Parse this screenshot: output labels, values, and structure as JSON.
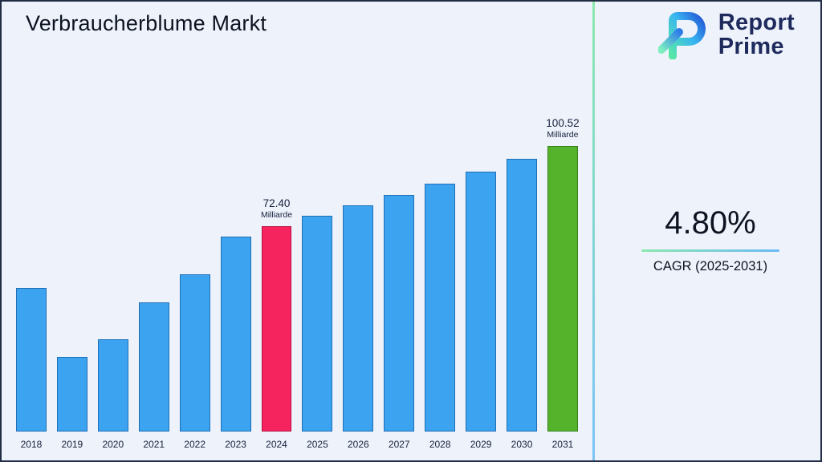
{
  "title": "Verbraucherblume Markt",
  "logo": {
    "line1": "Report",
    "line2": "Prime"
  },
  "cagr": {
    "value": "4.80%",
    "label": "CAGR (2025-2031)"
  },
  "chart_data": {
    "type": "bar",
    "title": "Verbraucherblume Markt",
    "xlabel": "",
    "ylabel": "",
    "unit": "Milliarde",
    "categories": [
      "2018",
      "2019",
      "2020",
      "2021",
      "2022",
      "2023",
      "2024",
      "2025",
      "2026",
      "2027",
      "2028",
      "2029",
      "2030",
      "2031"
    ],
    "values": [
      50.5,
      26.4,
      32.4,
      45.4,
      55.3,
      68.6,
      72.4,
      75.88,
      79.52,
      83.34,
      87.34,
      91.53,
      95.92,
      100.52
    ],
    "value_labels": {
      "2024": "72.40",
      "2031": "100.52"
    },
    "ylim": [
      0,
      110
    ],
    "grid": false,
    "legend": "none",
    "colors": {
      "default": {
        "fill": "#3ba3ef",
        "stroke": "#1f6fb5"
      },
      "2024": {
        "fill": "#f5245e",
        "stroke": "#bb0f43"
      },
      "2031": {
        "fill": "#54b32b",
        "stroke": "#37811a"
      }
    }
  }
}
